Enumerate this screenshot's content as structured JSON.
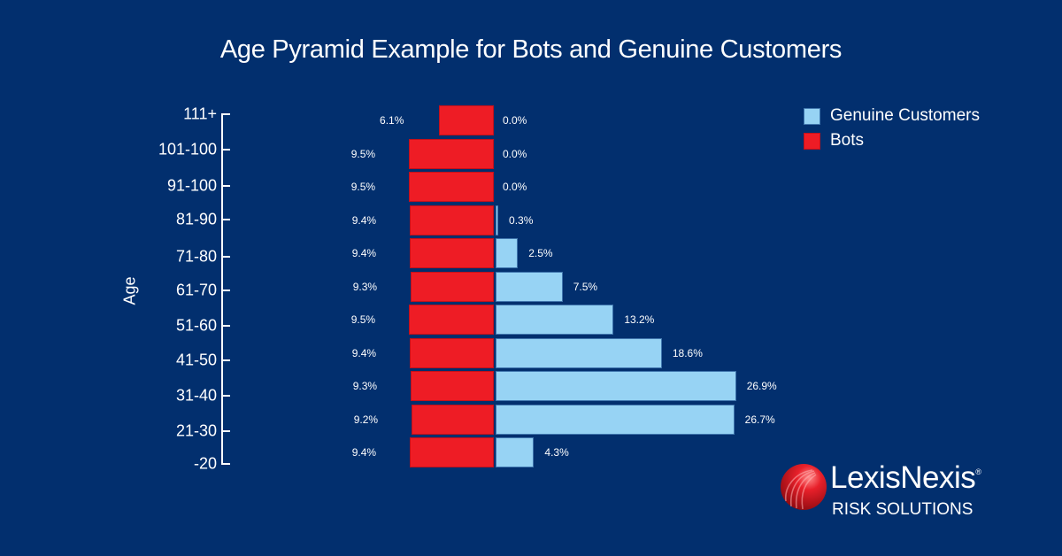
{
  "title": "Age Pyramid Example for Bots and Genuine Customers",
  "colors": {
    "background": "#022f6e",
    "bots": "#ee1c25",
    "genuine": "#97d3f4",
    "text": "#ffffff"
  },
  "legend": {
    "items": [
      {
        "label": "Genuine Customers",
        "color": "#97d3f4"
      },
      {
        "label": "Bots",
        "color": "#ee1c25"
      }
    ]
  },
  "logo": {
    "name": "LexisNexis",
    "subtitle": "RISK SOLUTIONS",
    "registered": "®"
  },
  "chart_data": {
    "type": "bar",
    "subtype": "population-pyramid",
    "title": "Age Pyramid Example for Bots and Genuine Customers",
    "xlabel": "",
    "ylabel": "Age",
    "categories": [
      "111+",
      "101-100",
      "91-100",
      "81-90",
      "71-80",
      "61-70",
      "51-60",
      "41-50",
      "31-40",
      "21-30",
      "-20"
    ],
    "series": [
      {
        "name": "Bots",
        "side": "left",
        "color": "#ee1c25",
        "values": [
          6.1,
          9.5,
          9.5,
          9.4,
          9.4,
          9.3,
          9.5,
          9.4,
          9.3,
          9.2,
          9.4
        ],
        "labels": [
          "6.1%",
          "9.5%",
          "9.5%",
          "9.4%",
          "9.4%",
          "9.3%",
          "9.5%",
          "9.4%",
          "9.3%",
          "9.2%",
          "9.4%"
        ]
      },
      {
        "name": "Genuine Customers",
        "side": "right",
        "color": "#97d3f4",
        "values": [
          0.0,
          0.0,
          0.0,
          0.3,
          2.5,
          7.5,
          13.2,
          18.6,
          26.9,
          26.7,
          4.3
        ],
        "labels": [
          "0.0%",
          "0.0%",
          "0.0%",
          "0.3%",
          "2.5%",
          "7.5%",
          "13.2%",
          "18.6%",
          "26.9%",
          "26.7%",
          "4.3%"
        ]
      }
    ],
    "unit": "%",
    "legend_position": "top-right",
    "grid": false
  }
}
